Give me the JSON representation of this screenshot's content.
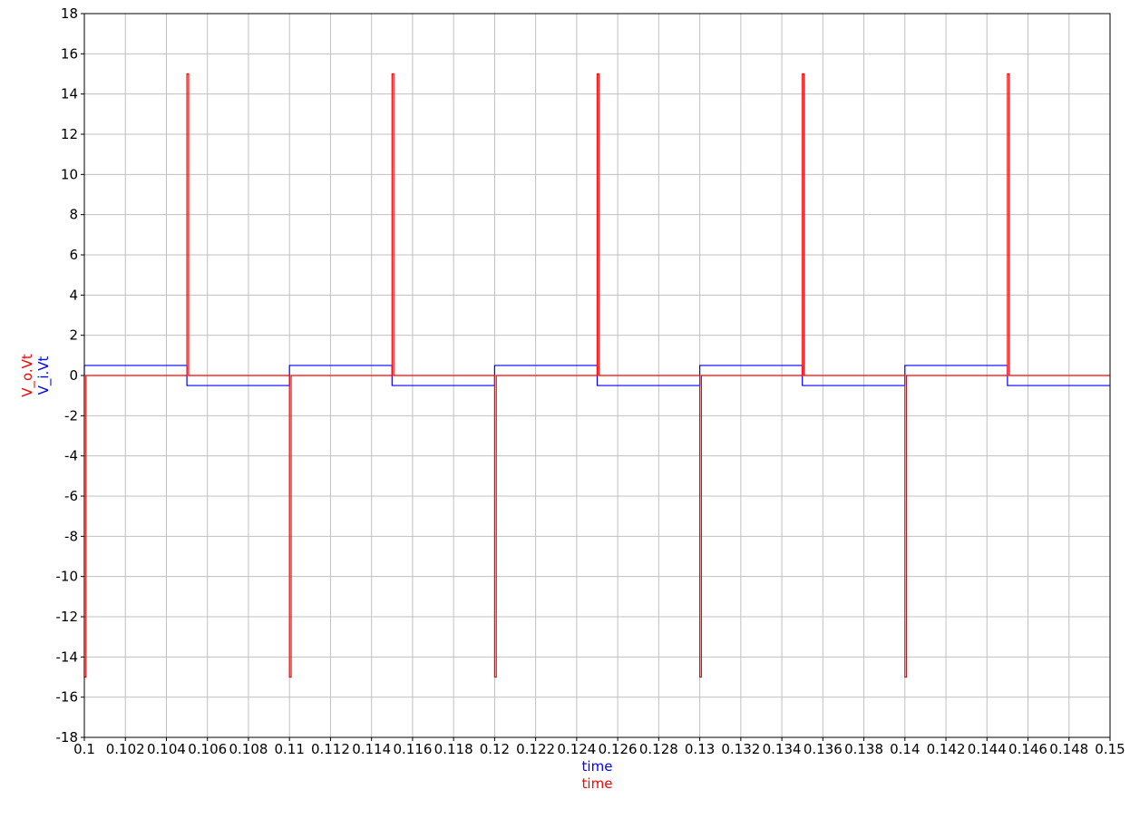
{
  "chart_data": {
    "type": "line",
    "xlabel_lines": [
      {
        "text": "time",
        "color": "#0000ff"
      },
      {
        "text": "time",
        "color": "#ff0000"
      }
    ],
    "ylabel_parts": [
      {
        "text": "V_o.Vt",
        "color": "#ff0000"
      },
      {
        "text": "V_i.Vt",
        "color": "#0000ff"
      }
    ],
    "xlim": [
      0.1,
      0.15
    ],
    "ylim": [
      -18,
      18
    ],
    "x_ticks": [
      "0.1",
      "0.102",
      "0.104",
      "0.106",
      "0.108",
      "0.11",
      "0.112",
      "0.114",
      "0.116",
      "0.118",
      "0.12",
      "0.122",
      "0.124",
      "0.126",
      "0.128",
      "0.13",
      "0.132",
      "0.134",
      "0.136",
      "0.138",
      "0.14",
      "0.142",
      "0.144",
      "0.146",
      "0.148",
      "0.15"
    ],
    "y_ticks": [
      "18",
      "16",
      "14",
      "12",
      "10",
      "8",
      "6",
      "4",
      "2",
      "0",
      "-2",
      "-4",
      "-6",
      "-8",
      "-10",
      "-12",
      "-14",
      "-16",
      "-18"
    ],
    "grid": true,
    "series": [
      {
        "name": "V_i.Vt",
        "color": "#0000ff",
        "points": [
          [
            0.1,
            0
          ],
          [
            0.1,
            0.5
          ],
          [
            0.105,
            0.5
          ],
          [
            0.105,
            -0.5
          ],
          [
            0.11,
            -0.5
          ],
          [
            0.11,
            0.5
          ],
          [
            0.115,
            0.5
          ],
          [
            0.115,
            -0.5
          ],
          [
            0.12,
            -0.5
          ],
          [
            0.12,
            0.5
          ],
          [
            0.125,
            0.5
          ],
          [
            0.125,
            -0.5
          ],
          [
            0.13,
            -0.5
          ],
          [
            0.13,
            0.5
          ],
          [
            0.135,
            0.5
          ],
          [
            0.135,
            -0.5
          ],
          [
            0.14,
            -0.5
          ],
          [
            0.14,
            0.5
          ],
          [
            0.145,
            0.5
          ],
          [
            0.145,
            -0.5
          ],
          [
            0.15,
            -0.5
          ]
        ]
      },
      {
        "name": "V_o.Vt",
        "color": "#ff0000",
        "points": [
          [
            0.1,
            0
          ],
          [
            0.1,
            -15
          ],
          [
            0.10008,
            -15
          ],
          [
            0.10008,
            0
          ],
          [
            0.105,
            0
          ],
          [
            0.105,
            15
          ],
          [
            0.10508,
            15
          ],
          [
            0.10508,
            0
          ],
          [
            0.11,
            0
          ],
          [
            0.11,
            -15
          ],
          [
            0.11008,
            -15
          ],
          [
            0.11008,
            0
          ],
          [
            0.115,
            0
          ],
          [
            0.115,
            15
          ],
          [
            0.11508,
            15
          ],
          [
            0.11508,
            0
          ],
          [
            0.12,
            0
          ],
          [
            0.12,
            -15
          ],
          [
            0.12008,
            -15
          ],
          [
            0.12008,
            0
          ],
          [
            0.125,
            0
          ],
          [
            0.125,
            15
          ],
          [
            0.12508,
            15
          ],
          [
            0.12508,
            0
          ],
          [
            0.13,
            0
          ],
          [
            0.13,
            -15
          ],
          [
            0.13008,
            -15
          ],
          [
            0.13008,
            0
          ],
          [
            0.135,
            0
          ],
          [
            0.135,
            15
          ],
          [
            0.13508,
            15
          ],
          [
            0.13508,
            0
          ],
          [
            0.14,
            0
          ],
          [
            0.14,
            -15
          ],
          [
            0.14008,
            -15
          ],
          [
            0.14008,
            0
          ],
          [
            0.145,
            0
          ],
          [
            0.145,
            15
          ],
          [
            0.14508,
            15
          ],
          [
            0.14508,
            0
          ],
          [
            0.15,
            0
          ]
        ]
      }
    ]
  }
}
